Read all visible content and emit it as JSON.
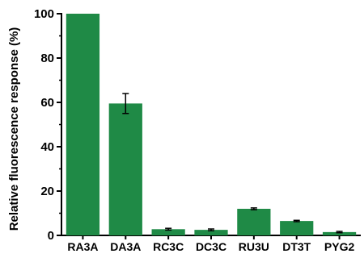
{
  "chart_data": {
    "type": "bar",
    "title": "",
    "xlabel": "",
    "ylabel": "Relative fluorescence response (%)",
    "ylim": [
      0,
      100
    ],
    "yticks": [
      "0",
      "20",
      "40",
      "60",
      "80",
      "100"
    ],
    "categories": [
      "RA3A",
      "DA3A",
      "RC3C",
      "DC3C",
      "RU3U",
      "DT3T",
      "PYG2"
    ],
    "values": [
      100,
      59.5,
      2.8,
      2.5,
      12.0,
      6.5,
      1.5
    ],
    "errors": [
      0,
      4.5,
      0.4,
      0.4,
      0.4,
      0.3,
      0.3
    ],
    "bar_color": "#1f8a46",
    "grid": false,
    "legend": "none"
  }
}
